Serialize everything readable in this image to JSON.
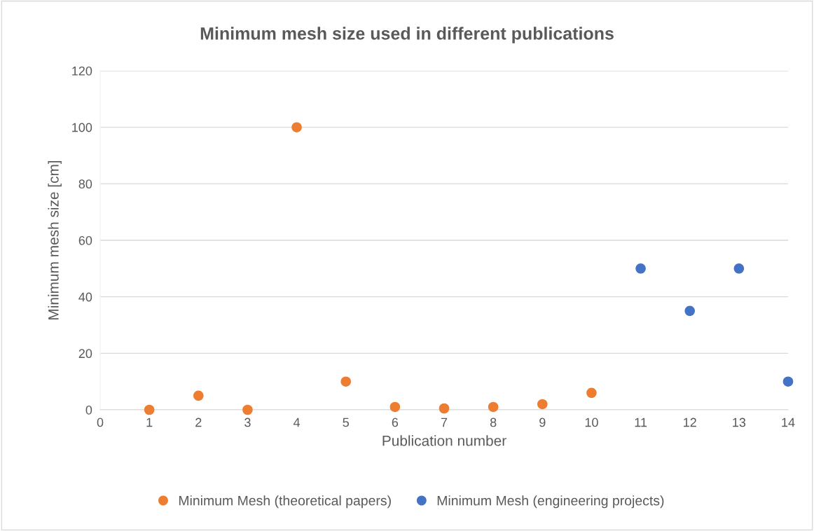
{
  "chart_data": {
    "type": "scatter",
    "title": "Minimum mesh size used in different publications",
    "xlabel": "Publication number",
    "ylabel": "Minimum mesh size [cm]",
    "series": [
      {
        "name": "Minimum Mesh (theoretical papers)",
        "color": "#ed7d31",
        "x": [
          1,
          2,
          3,
          4,
          5,
          6,
          7,
          8,
          9,
          10
        ],
        "values": [
          0,
          5,
          0,
          100,
          10,
          1,
          0.5,
          1,
          2,
          6
        ]
      },
      {
        "name": "Minimum Mesh (engineering projects)",
        "color": "#4472c4",
        "x": [
          11,
          12,
          13,
          14
        ],
        "values": [
          50,
          35,
          50,
          10
        ]
      }
    ],
    "xlim": [
      0,
      14
    ],
    "xticks": [
      0,
      1,
      2,
      3,
      4,
      5,
      6,
      7,
      8,
      9,
      10,
      11,
      12,
      13,
      14
    ],
    "ylim": [
      0,
      120
    ],
    "yticks": [
      0,
      20,
      40,
      60,
      80,
      100,
      120
    ],
    "grid": "y",
    "legend": "bottom",
    "marker": "circle"
  }
}
